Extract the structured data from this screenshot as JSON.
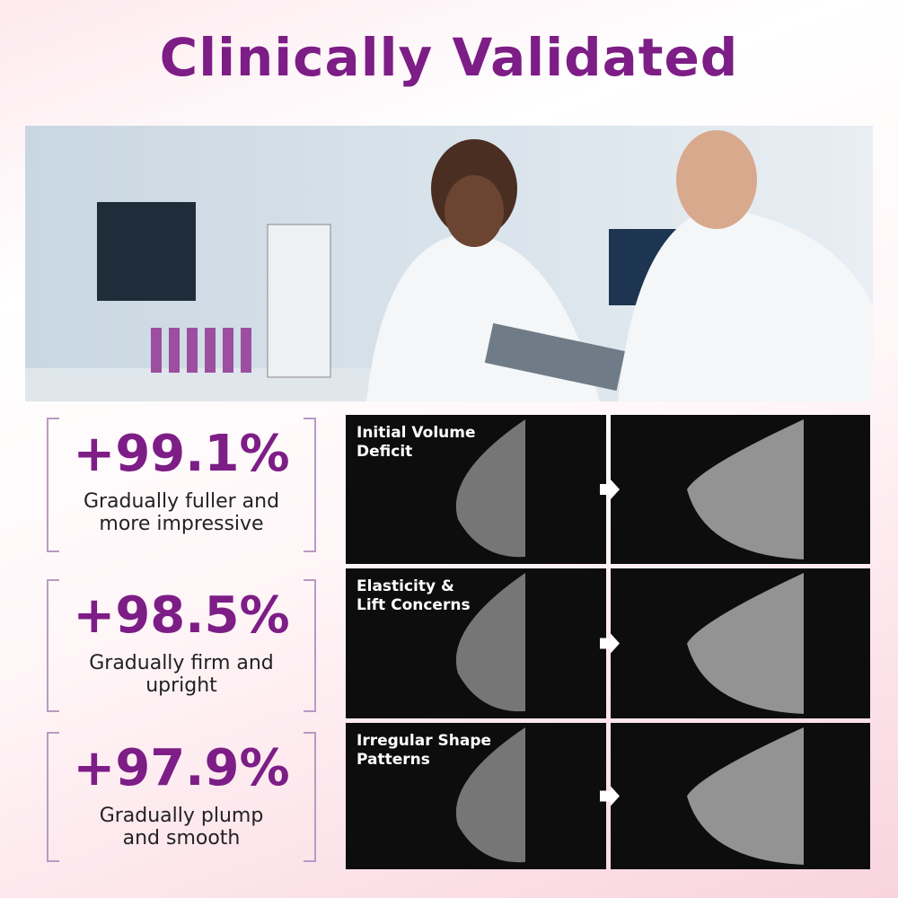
{
  "header": {
    "title": "Clinically Validated"
  },
  "stats": [
    {
      "value": "+99.1%",
      "lines": [
        "Gradually fuller and",
        "more impressive"
      ]
    },
    {
      "value": "+98.5%",
      "lines": [
        "Gradually firm and",
        "upright"
      ]
    },
    {
      "value": "+97.9%",
      "lines": [
        "Gradually plump",
        "and smooth"
      ]
    }
  ],
  "panels": [
    {
      "lines": [
        "Initial Volume",
        "Deficit"
      ]
    },
    {
      "lines": [
        "Elasticity &",
        "Lift Concerns"
      ]
    },
    {
      "lines": [
        "Irregular Shape",
        "Patterns"
      ]
    }
  ]
}
